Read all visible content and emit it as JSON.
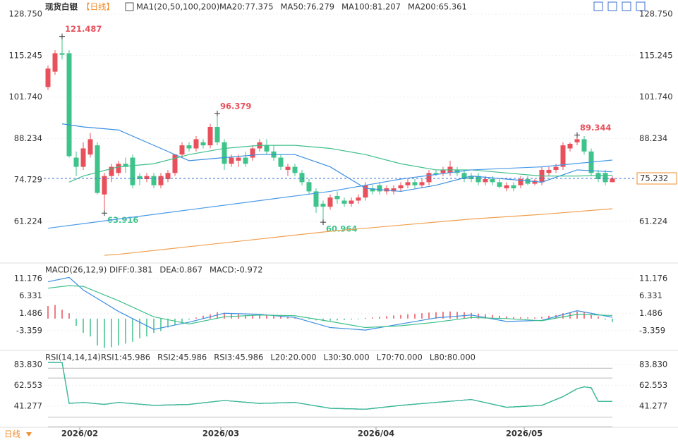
{
  "chart_data": {
    "type": "candlestick",
    "title": "现货白银",
    "period": "【日线】",
    "indicator": "MA1(20,50,100,200)",
    "up_color": "#e8505b",
    "down_color": "#3ec38a",
    "ylim": [
      47.9,
      133.34
    ],
    "yticks": [
      {
        "value": 128.75,
        "label": "128.750"
      },
      115.245,
      {
        "value": 101.74,
        "label": "101.740"
      },
      88.234,
      74.729,
      61.224
    ],
    "ohlc": [
      [
        105,
        112,
        104,
        111
      ],
      [
        110,
        117,
        109,
        116
      ],
      [
        116,
        121.487,
        114,
        115.5
      ],
      [
        116,
        117,
        82,
        82.5
      ],
      [
        82,
        84,
        76,
        79
      ],
      [
        79,
        87,
        78,
        85
      ],
      [
        83,
        90,
        82,
        88
      ],
      [
        86,
        87,
        70,
        70.5
      ],
      [
        70,
        77,
        63.916,
        76
      ],
      [
        76,
        80,
        74,
        79
      ],
      [
        77,
        81,
        76,
        80
      ],
      [
        80,
        82,
        77,
        79
      ],
      [
        82,
        83,
        72,
        73
      ],
      [
        76,
        77,
        73,
        75
      ],
      [
        75,
        77,
        74,
        76
      ],
      [
        76,
        77,
        72,
        73
      ],
      [
        73,
        77,
        72,
        76
      ],
      [
        75,
        78,
        74,
        77
      ],
      [
        77,
        83,
        76,
        83
      ],
      [
        83,
        87,
        82,
        86
      ],
      [
        86,
        87,
        84,
        85
      ],
      [
        85,
        89,
        84,
        88
      ],
      [
        87,
        88,
        85,
        86
      ],
      [
        86,
        93,
        85,
        92
      ],
      [
        92,
        96.379,
        86,
        87
      ],
      [
        87,
        88,
        78,
        80
      ],
      [
        80,
        83,
        79,
        82
      ],
      [
        81,
        83,
        79,
        82
      ],
      [
        82,
        84,
        79,
        80
      ],
      [
        82,
        86,
        81,
        85
      ],
      [
        85,
        88,
        84,
        87
      ],
      [
        86,
        88,
        83,
        84
      ],
      [
        84,
        86,
        81,
        82
      ],
      [
        82,
        83,
        78,
        79
      ],
      [
        78,
        80,
        76,
        79
      ],
      [
        79,
        80,
        76,
        77
      ],
      [
        77,
        78,
        73,
        74
      ],
      [
        74,
        75,
        70,
        71
      ],
      [
        71,
        72,
        64,
        66
      ],
      [
        67,
        68,
        60.964,
        66
      ],
      [
        66,
        70,
        65,
        69
      ],
      [
        69.5,
        71,
        67,
        68.5
      ],
      [
        68,
        69,
        66,
        67
      ],
      [
        67,
        69,
        66,
        68
      ],
      [
        68,
        70,
        67,
        69
      ],
      [
        69,
        74,
        68,
        73
      ],
      [
        72,
        73,
        70,
        71
      ],
      [
        73,
        74,
        70,
        71
      ],
      [
        71,
        73,
        70,
        72
      ],
      [
        71,
        73,
        70,
        72
      ],
      [
        72,
        74,
        71,
        73
      ],
      [
        73,
        75,
        72,
        74
      ],
      [
        74,
        75,
        72,
        73
      ],
      [
        73,
        75,
        72,
        74
      ],
      [
        74,
        78,
        73,
        77
      ],
      [
        77,
        78,
        76,
        76.5
      ],
      [
        77,
        79,
        76,
        78
      ],
      [
        77,
        81,
        76,
        79
      ],
      [
        78,
        79,
        76,
        77
      ],
      [
        77,
        78,
        74,
        75
      ],
      [
        76,
        77,
        74,
        75
      ],
      [
        76,
        77,
        73,
        74
      ],
      [
        74,
        76,
        73,
        75
      ],
      [
        75,
        76,
        73,
        74
      ],
      [
        74,
        75,
        72,
        72.5
      ],
      [
        72,
        74,
        71,
        73
      ],
      [
        73,
        74,
        71,
        72
      ],
      [
        73,
        76,
        72,
        75
      ],
      [
        75,
        76,
        73,
        73.5
      ],
      [
        73.5,
        75,
        73,
        74.5
      ],
      [
        74,
        79,
        73,
        78
      ],
      [
        77,
        79,
        76,
        78
      ],
      [
        78,
        80,
        77,
        79
      ],
      [
        79,
        87,
        78,
        86
      ],
      [
        85,
        87,
        84,
        86.5
      ],
      [
        87,
        89.344,
        86,
        88
      ],
      [
        88,
        89,
        83,
        84
      ],
      [
        84,
        85,
        76,
        77
      ],
      [
        77,
        78,
        74,
        75
      ],
      [
        77,
        78,
        73,
        74
      ],
      [
        74,
        76,
        74,
        75.232
      ]
    ],
    "lines": [
      {
        "legend": "MA20:77.375",
        "color": "#3b8fe0",
        "x": [
          2,
          5,
          10,
          15,
          20,
          25,
          30,
          35,
          40,
          45,
          50,
          55,
          60,
          65,
          70,
          75,
          80
        ],
        "values": [
          93,
          92,
          91,
          86,
          81,
          82,
          83,
          83,
          79,
          72,
          71,
          73,
          76,
          75,
          74,
          78,
          77.375
        ]
      },
      {
        "legend": "MA50:76.279",
        "color": "#3dbf8a",
        "x": [
          3,
          5,
          10,
          15,
          20,
          25,
          30,
          35,
          40,
          45,
          50,
          55,
          60,
          65,
          70,
          75,
          80
        ],
        "values": [
          74,
          76,
          79,
          80,
          83,
          85,
          86,
          86,
          85,
          83,
          80,
          78,
          78,
          77,
          76,
          76,
          76.279
        ]
      },
      {
        "legend": "MA100:81.207",
        "color": "#4a9be8",
        "x": [
          0,
          10,
          20,
          30,
          40,
          50,
          60,
          70,
          80
        ],
        "values": [
          59,
          62,
          65,
          68,
          71,
          75,
          78,
          79,
          81.207
        ]
      },
      {
        "legend": "MA200:65.361",
        "color": "#f0a050",
        "x": [
          8,
          10,
          20,
          30,
          40,
          50,
          60,
          70,
          80
        ],
        "values": [
          50.2,
          50.5,
          53,
          55.5,
          58,
          60,
          62,
          63.5,
          65.361
        ]
      }
    ],
    "date_ticks": [
      {
        "value": 4.5,
        "label": "2026/02"
      },
      {
        "value": 24.5,
        "label": "2026/03"
      },
      {
        "value": 46.5,
        "label": "2026/04"
      },
      {
        "value": 67.5,
        "label": "2026/05"
      }
    ],
    "interval_label": "日线",
    "macd": {
      "title": "MACD(26,12,9)",
      "hist_legend": "MACD:-0.972",
      "ylim": [
        -8.5,
        15.13
      ],
      "yticks": [
        11.176,
        6.331,
        1.486,
        -3.359
      ],
      "hist": [
        3.5,
        3.8,
        2.5,
        1.5,
        -2,
        -4,
        -5,
        -7.5,
        -8.2,
        -8,
        -7.5,
        -7,
        -6.5,
        -5.5,
        -5,
        -4,
        -3.5,
        -2.5,
        -1.8,
        -1,
        -0.3,
        0.3,
        0.8,
        1.2,
        1.8,
        1.6,
        1.3,
        1.2,
        1,
        1,
        1,
        1,
        0.8,
        0.6,
        0.5,
        0.3,
        0.1,
        -0.2,
        -0.5,
        -0.7,
        -0.6,
        -0.5,
        -0.4,
        -0.3,
        -0.2,
        0.2,
        0.3,
        0.5,
        0.7,
        0.9,
        1,
        1.2,
        1.3,
        1.5,
        1.7,
        1.8,
        1.9,
        2,
        1.9,
        1.8,
        1.6,
        1.4,
        1.2,
        1,
        0.8,
        0.6,
        0.4,
        0.4,
        0.3,
        0.3,
        0.5,
        0.8,
        1,
        1.5,
        1.8,
        2,
        1.8,
        1.2,
        0.6,
        -0.3,
        -0.972
      ],
      "lines": [
        {
          "legend": "DIFF:0.381",
          "color": "#3b8fe0",
          "x": [
            0,
            3,
            5,
            10,
            15,
            20,
            25,
            30,
            35,
            40,
            45,
            50,
            55,
            60,
            65,
            70,
            75,
            80
          ],
          "values": [
            10.3,
            11.5,
            8,
            2,
            -3,
            -1,
            1.5,
            1.2,
            0.3,
            -2.5,
            -3.2,
            -1.5,
            0.2,
            1,
            -0.8,
            -0.5,
            2.2,
            0.381
          ]
        },
        {
          "legend": "DEA:0.867",
          "color": "#3dbf8a",
          "x": [
            0,
            3,
            5,
            10,
            15,
            20,
            25,
            30,
            35,
            40,
            45,
            50,
            55,
            60,
            65,
            70,
            75,
            80
          ],
          "values": [
            8.5,
            9.2,
            9,
            5,
            0.5,
            -1.5,
            0.5,
            1,
            0.8,
            -0.8,
            -2.5,
            -2,
            -1,
            0.3,
            0,
            -0.6,
            1.2,
            0.867
          ]
        }
      ]
    },
    "rsi": {
      "title": "RSI(14,14,14)",
      "ylim": [
        19.5,
        96.1
      ],
      "yticks": [
        {
          "value": 83.83,
          "label": "83.830"
        },
        62.553,
        41.277
      ],
      "levels": [
        {
          "legend": "L20:20.000",
          "value": 20
        },
        {
          "legend": "L30:30.000",
          "value": 30
        },
        {
          "legend": "L70:70.000",
          "value": 70
        },
        {
          "legend": "L80:80.000",
          "value": 80
        }
      ],
      "lines": [
        {
          "legend": "RSI1:45.986",
          "color": "#3b8fe0",
          "x": [
            0,
            2,
            3,
            5,
            8,
            10,
            15,
            20,
            25,
            30,
            35,
            40,
            45,
            50,
            55,
            60,
            65,
            70,
            73,
            75,
            76,
            77,
            78,
            80
          ],
          "values": [
            86,
            86,
            44,
            45,
            43,
            45,
            42,
            43,
            47,
            44,
            45,
            39,
            38,
            42,
            45,
            48,
            40,
            42,
            51,
            59,
            61,
            60,
            46,
            45.986
          ]
        },
        {
          "legend": "RSI2:45.986",
          "color": "#3b8fe0",
          "x": [
            0,
            2,
            3,
            5,
            8,
            10,
            15,
            20,
            25,
            30,
            35,
            40,
            45,
            50,
            55,
            60,
            65,
            70,
            73,
            75,
            76,
            77,
            78,
            80
          ],
          "values": [
            86,
            86,
            44,
            45,
            43,
            45,
            42,
            43,
            47,
            44,
            45,
            39,
            38,
            42,
            45,
            48,
            40,
            42,
            51,
            59,
            61,
            60,
            46,
            45.986
          ]
        },
        {
          "legend": "RSI3:45.986",
          "color": "#3dbf8a",
          "x": [
            0,
            2,
            3,
            5,
            8,
            10,
            15,
            20,
            25,
            30,
            35,
            40,
            45,
            50,
            55,
            60,
            65,
            70,
            73,
            75,
            76,
            77,
            78,
            80
          ],
          "values": [
            86,
            86,
            44,
            45,
            43,
            45,
            42,
            43,
            47,
            44,
            45,
            39,
            38,
            42,
            45,
            48,
            40,
            42,
            51,
            59,
            61,
            60,
            46,
            45.986
          ]
        }
      ]
    }
  }
}
